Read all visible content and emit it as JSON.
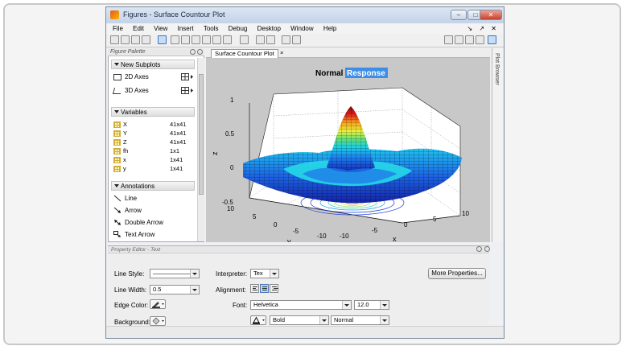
{
  "window": {
    "title": "Figures - Surface Countour Plot"
  },
  "menubar": {
    "items": [
      "File",
      "Edit",
      "View",
      "Insert",
      "Tools",
      "Debug",
      "Desktop",
      "Window",
      "Help"
    ],
    "right_glyphs": "↘ ↗ ✕"
  },
  "palette": {
    "header": "Figure Palette",
    "new_subplots": {
      "label": "New Subplots",
      "items": [
        "2D Axes",
        "3D Axes"
      ]
    },
    "variables": {
      "label": "Variables",
      "rows": [
        {
          "name": "X",
          "size": "41x41"
        },
        {
          "name": "Y",
          "size": "41x41"
        },
        {
          "name": "Z",
          "size": "41x41"
        },
        {
          "name": "fh",
          "size": "1x1"
        },
        {
          "name": "x",
          "size": "1x41"
        },
        {
          "name": "y",
          "size": "1x41"
        }
      ]
    },
    "annotations": {
      "label": "Annotations",
      "items": [
        "Line",
        "Arrow",
        "Double Arrow",
        "Text Arrow"
      ]
    }
  },
  "figure_tab": {
    "label": "Surface Countour Plot",
    "close": "×"
  },
  "plot_browser": {
    "label": "Plot Browser"
  },
  "plot": {
    "title_normal": "Normal",
    "title_selected": "Response",
    "z_label": "z",
    "y_label": "y",
    "x_label": "x",
    "z_ticks": [
      "1",
      "0.5",
      "0",
      "-0.5"
    ],
    "y_ticks": [
      "10",
      "5",
      "0",
      "-5",
      "-10"
    ],
    "x_ticks": [
      "-10",
      "-5",
      "0",
      "5",
      "10"
    ]
  },
  "property_editor": {
    "header": "Property Editor - Text",
    "line_style_label": "Line Style:",
    "line_style_value": "———————",
    "line_width_label": "Line Width:",
    "line_width_value": "0.5",
    "edge_color_label": "Edge Color:",
    "background_label": "Background:",
    "interpreter_label": "Interpreter:",
    "interpreter_value": "Tex",
    "alignment_label": "Alignment:",
    "font_label": "Font:",
    "font_value": "Helvetica",
    "font_size_value": "12.0",
    "font_weight_value": "Bold",
    "font_angle_value": "Normal",
    "more_properties_label": "More Properties..."
  }
}
